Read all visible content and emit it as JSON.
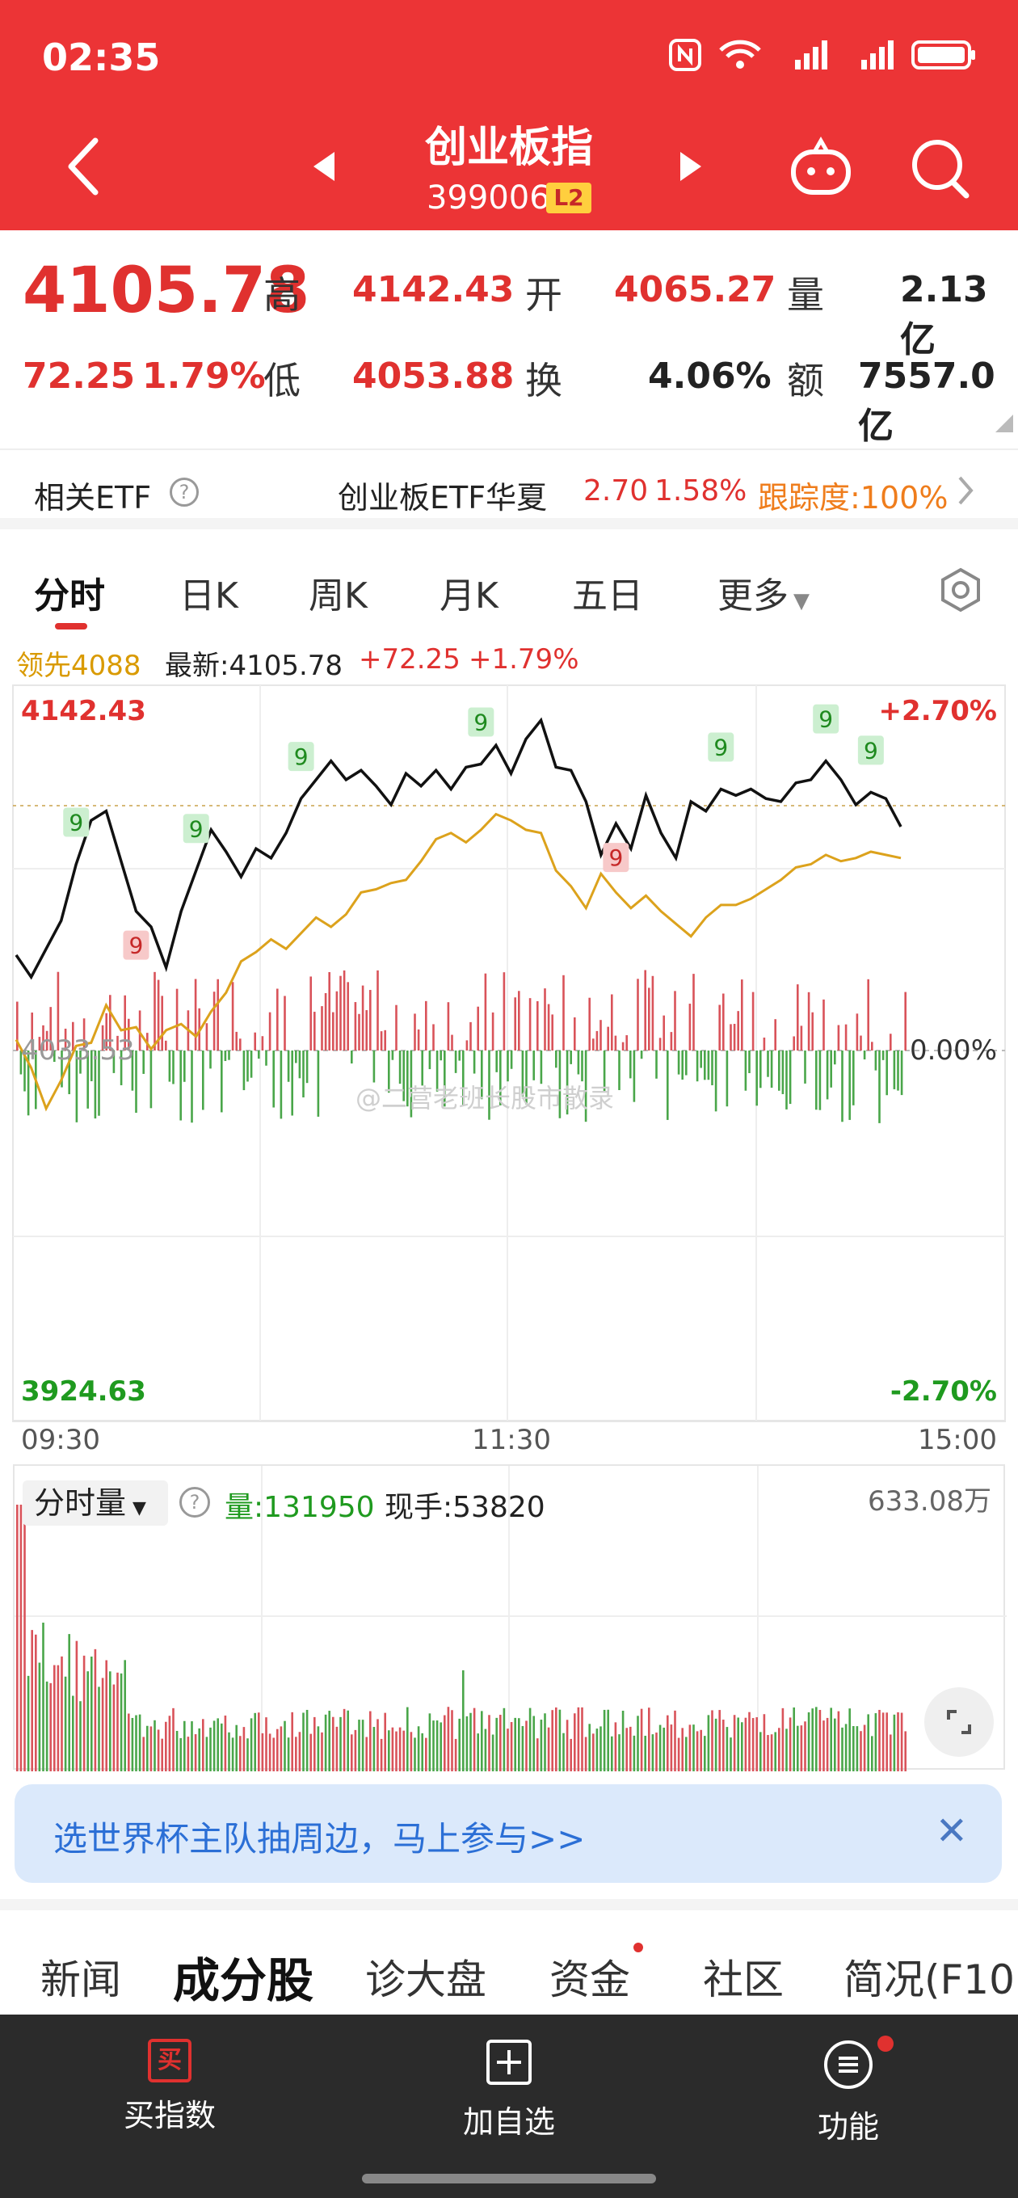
{
  "status_bar": {
    "time": "02:35"
  },
  "header": {
    "title": "创业板指",
    "code": "399006",
    "level_badge": "L2"
  },
  "quote": {
    "price": "4105.78",
    "change": "72.25",
    "change_pct": "1.79%",
    "high_label": "高",
    "high": "4142.43",
    "low_label": "低",
    "low": "4053.88",
    "open_label": "开",
    "open": "4065.27",
    "turnover_label": "换",
    "turnover": "4.06%",
    "volume_label": "量",
    "volume": "2.13亿",
    "amount_label": "额",
    "amount": "7557.0亿"
  },
  "etf": {
    "label": "相关ETF",
    "name": "创业板ETF华夏",
    "price": "2.70",
    "pct": "1.58%",
    "tracking": "跟踪度:100%"
  },
  "tabs": [
    "分时",
    "日K",
    "周K",
    "月K",
    "五日",
    "更多"
  ],
  "stats": {
    "lead": "领先4088",
    "latest": "最新:4105.78",
    "change": "+72.25",
    "pct": "+1.79%"
  },
  "chart_data": {
    "type": "line",
    "y_top": "4142.43",
    "y_mid": "4033.53",
    "y_bottom": "3924.63",
    "pct_top": "+2.70%",
    "pct_mid": "0.00%",
    "pct_bottom": "-2.70%",
    "x_labels": [
      "09:30",
      "11:30",
      "15:00"
    ],
    "watermark": "@二营老班长股市散录",
    "signal_marker": "9",
    "ylim": [
      3924.63,
      4142.43
    ],
    "series": [
      {
        "values": [
          4064,
          4057,
          4066,
          4075,
          4093,
          4107,
          4110,
          4094,
          4078,
          4073,
          4060,
          4078,
          4091,
          4104,
          4097,
          4089,
          4098,
          4095,
          4103,
          4114,
          4120,
          4126,
          4120,
          4123,
          4118,
          4112,
          4122,
          4118,
          4123,
          4117,
          4124,
          4125,
          4131,
          4122,
          4133,
          4139,
          4124,
          4123,
          4113,
          4096,
          4106,
          4098,
          4115,
          4103,
          4095,
          4113,
          4110,
          4117,
          4115,
          4117,
          4114,
          4113,
          4119,
          4120,
          4126,
          4120,
          4112,
          4116,
          4114,
          4105
        ]
      },
      {
        "values": [
          4037,
          4028,
          4015,
          4024,
          4035,
          4036,
          4048,
          4040,
          4041,
          4034,
          4040,
          4042,
          4038,
          4046,
          4052,
          4062,
          4065,
          4069,
          4066,
          4071,
          4076,
          4073,
          4077,
          4084,
          4085,
          4087,
          4088,
          4094,
          4101,
          4103,
          4100,
          4104,
          4109,
          4107,
          4104,
          4103,
          4091,
          4086,
          4079,
          4090,
          4084,
          4079,
          4083,
          4078,
          4074,
          4070,
          4076,
          4080,
          4080,
          4082,
          4085,
          4088,
          4092,
          4093,
          4096,
          4094,
          4095,
          4097,
          4096,
          4095
        ]
      }
    ]
  },
  "volume": {
    "selector": "分时量",
    "volume": "量:131950",
    "current_hand": "现手:53820",
    "max": "633.08万"
  },
  "banner": {
    "text": "选世界杯主队抽周边，马上参与>>"
  },
  "subtabs": [
    "新闻",
    "成分股",
    "诊大盘",
    "资金",
    "社区",
    "简况(F10"
  ],
  "bottombar": [
    {
      "label": "买指数",
      "icon_text": "买"
    },
    {
      "label": "加自选"
    },
    {
      "label": "功能"
    }
  ]
}
